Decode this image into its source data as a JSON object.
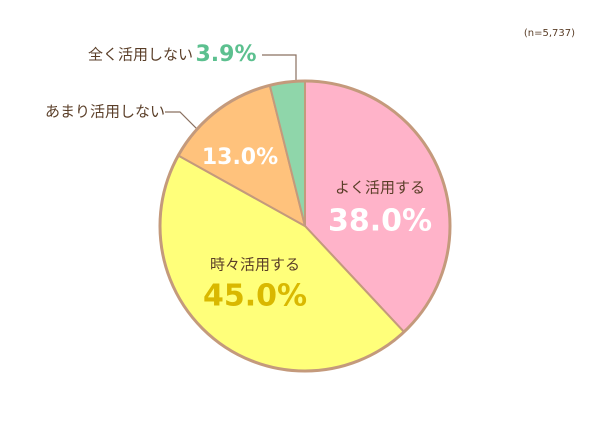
{
  "chart_data": {
    "type": "pie",
    "note": "(n=5,737)",
    "categories": [
      "よく活用する",
      "時々活用する",
      "あまり活用しない",
      "全く活用しない"
    ],
    "values": [
      38.0,
      45.0,
      13.0,
      3.9
    ],
    "value_labels": [
      "38.0%",
      "45.0%",
      "13.0%",
      "3.9%"
    ],
    "colors": [
      "#ffb3c9",
      "#ffff7a",
      "#ffc27c",
      "#8fd6aa"
    ],
    "label_colors": [
      "#ffffff",
      "#d9b800",
      "#ffffff",
      "#5cc08f"
    ]
  }
}
